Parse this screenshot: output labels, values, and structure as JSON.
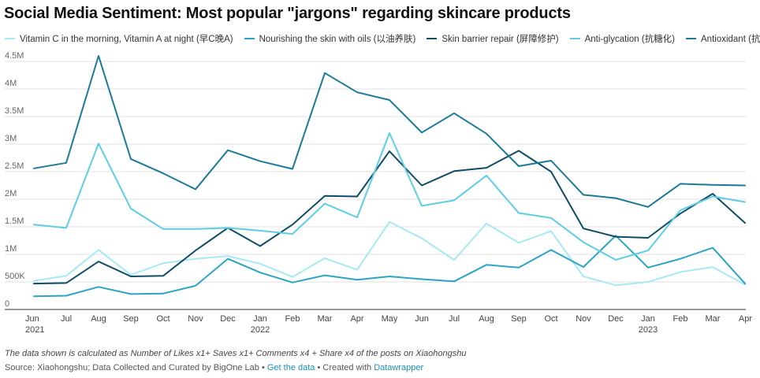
{
  "title": "Social Media Sentiment: Most popular \"jargons\" regarding skincare products",
  "note": "The data shown is calculated as Number of Likes x1+ Saves x1+ Comments x4 + Share x4 of the posts on Xiaohongshu",
  "source": {
    "prefix": "Source: Xiaohongshu; Data Collected and Curated by BigOne Lab",
    "sep1": " • ",
    "get_data": "Get the data",
    "sep2": " • Created with ",
    "created_with": "Datawrapper"
  },
  "chart_data": {
    "type": "line",
    "title": "Social Media Sentiment: Most popular \"jargons\" regarding skincare products",
    "xlabel": "",
    "ylabel": "",
    "ylim": [
      0,
      4700000
    ],
    "grid": true,
    "legend_position": "top",
    "x": [
      "Jun 2021",
      "Jul 2021",
      "Aug 2021",
      "Sep 2021",
      "Oct 2021",
      "Nov 2021",
      "Dec 2021",
      "Jan 2022",
      "Feb 2022",
      "Mar 2022",
      "Apr 2022",
      "May 2022",
      "Jun 2022",
      "Jul 2022",
      "Aug 2022",
      "Sep 2022",
      "Oct 2022",
      "Nov 2022",
      "Dec 2022",
      "Jan 2023",
      "Feb 2023",
      "Mar 2023",
      "Apr 2023"
    ],
    "x_tick_labels": [
      {
        "label": "Jun",
        "sub": "2021"
      },
      {
        "label": "Jul",
        "sub": ""
      },
      {
        "label": "Aug",
        "sub": ""
      },
      {
        "label": "Sep",
        "sub": ""
      },
      {
        "label": "Oct",
        "sub": ""
      },
      {
        "label": "Nov",
        "sub": ""
      },
      {
        "label": "Dec",
        "sub": ""
      },
      {
        "label": "Jan",
        "sub": "2022"
      },
      {
        "label": "Feb",
        "sub": ""
      },
      {
        "label": "Mar",
        "sub": ""
      },
      {
        "label": "Apr",
        "sub": ""
      },
      {
        "label": "May",
        "sub": ""
      },
      {
        "label": "Jun",
        "sub": ""
      },
      {
        "label": "Jul",
        "sub": ""
      },
      {
        "label": "Aug",
        "sub": ""
      },
      {
        "label": "Sep",
        "sub": ""
      },
      {
        "label": "Oct",
        "sub": ""
      },
      {
        "label": "Nov",
        "sub": ""
      },
      {
        "label": "Dec",
        "sub": ""
      },
      {
        "label": "Jan",
        "sub": "2023"
      },
      {
        "label": "Feb",
        "sub": ""
      },
      {
        "label": "Mar",
        "sub": ""
      },
      {
        "label": "Apr",
        "sub": ""
      }
    ],
    "y_ticks": [
      {
        "value": 0,
        "label": "0"
      },
      {
        "value": 500000,
        "label": "500K"
      },
      {
        "value": 1000000,
        "label": "1M"
      },
      {
        "value": 1500000,
        "label": "1.5M"
      },
      {
        "value": 2000000,
        "label": "2M"
      },
      {
        "value": 2500000,
        "label": "2.5M"
      },
      {
        "value": 3000000,
        "label": "3M"
      },
      {
        "value": 3500000,
        "label": "3.5M"
      },
      {
        "value": 4000000,
        "label": "4M"
      },
      {
        "value": 4500000,
        "label": "4.5M"
      }
    ],
    "series": [
      {
        "name": "Vitamin C in the morning, Vitamin A at night (早C晚A)",
        "color": "#a6e9f5",
        "values": [
          520000,
          610000,
          1080000,
          630000,
          840000,
          920000,
          970000,
          830000,
          590000,
          930000,
          720000,
          1590000,
          1290000,
          900000,
          1560000,
          1210000,
          1420000,
          600000,
          440000,
          500000,
          680000,
          770000,
          450000
        ]
      },
      {
        "name": "Nourishing the skin with oils (以油养肤)",
        "color": "#2ba4c7",
        "values": [
          240000,
          250000,
          410000,
          280000,
          290000,
          430000,
          920000,
          670000,
          490000,
          620000,
          540000,
          600000,
          550000,
          510000,
          810000,
          760000,
          1080000,
          770000,
          1340000,
          760000,
          920000,
          1120000,
          470000
        ]
      },
      {
        "name": "Skin barrier repair (屏障修护)",
        "color": "#0f4c66",
        "values": [
          470000,
          480000,
          870000,
          600000,
          610000,
          1070000,
          1480000,
          1150000,
          1540000,
          2060000,
          2050000,
          2870000,
          2250000,
          2510000,
          2570000,
          2880000,
          2500000,
          1470000,
          1320000,
          1300000,
          1740000,
          2100000,
          1570000
        ]
      },
      {
        "name": "Anti-glycation (抗糖化)",
        "color": "#5dcde6",
        "values": [
          1540000,
          1480000,
          3010000,
          1830000,
          1460000,
          1460000,
          1480000,
          1430000,
          1370000,
          1920000,
          1670000,
          3200000,
          1880000,
          1980000,
          2430000,
          1750000,
          1660000,
          1220000,
          900000,
          1070000,
          1800000,
          2050000,
          1950000
        ]
      },
      {
        "name": "Antioxidant (抗氧化)",
        "color": "#1b7a99",
        "values": [
          2560000,
          2660000,
          4600000,
          2730000,
          2470000,
          2180000,
          2890000,
          2690000,
          2550000,
          4290000,
          3940000,
          3800000,
          3210000,
          3560000,
          3190000,
          2600000,
          2700000,
          2080000,
          2020000,
          1860000,
          2280000,
          2260000,
          2250000
        ]
      }
    ]
  }
}
